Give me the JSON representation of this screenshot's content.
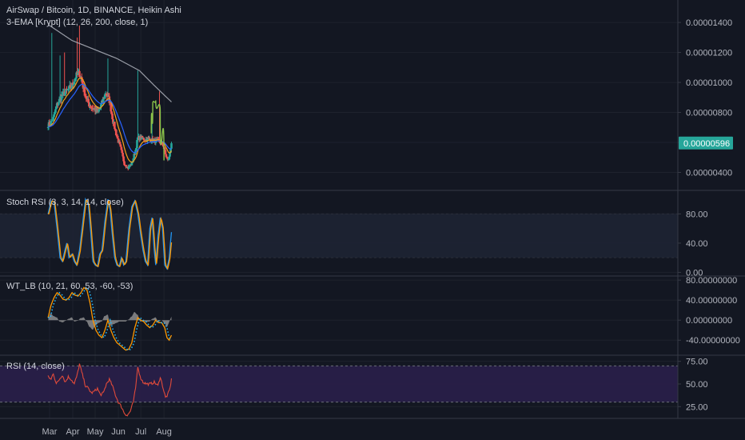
{
  "header": {
    "symbol_line": "AirSwap / Bitcoin, 1D, BINANCE, Heikin Ashi",
    "ema_legend": "3-EMA [Krypt] (12, 26, 200, close, 1)"
  },
  "panes": {
    "stoch_legend": "Stoch RSI (3, 3, 14, 14, close)",
    "wt_legend": "WT_LB (10, 21, 60, 53, -60, -53)",
    "rsi_legend": "RSI (14, close)"
  },
  "colors": {
    "background": "#131722",
    "grid": "#1e222d",
    "separator": "#363a45",
    "up_candle": "#26a69a",
    "down_candle": "#ef5350",
    "ema_fast": "#f7a21b",
    "ema_mid": "#2962ff",
    "ema_slow": "#b2b5be",
    "drawing": "#8bc34a",
    "stoch_k": "#2196f3",
    "stoch_d": "#ff9800",
    "wt1": "#ff9800",
    "wt2": "#29b6f6",
    "wt_hist": "#9e9e9e",
    "rsi_line": "#e04a3a",
    "rsi_band": "#2a1f4a",
    "price_tag": "#26a69a"
  },
  "chart_data": [
    {
      "type": "candlestick",
      "pane": "price",
      "title": "AirSwap / Bitcoin, 1D, BINANCE, Heikin Ashi",
      "y_ticks": [
        4e-06,
        6e-06,
        8e-06,
        1e-05,
        1.2e-05,
        1.4e-05
      ],
      "y_tick_labels": [
        "0.00000400",
        "0.00000600",
        "0.00000800",
        "0.00001000",
        "0.00001200",
        "0.00001400"
      ],
      "ylim": [
        2.8e-06,
        1.55e-05
      ],
      "last_price": 5.96e-06,
      "last_price_label": "0.00000596",
      "anchors_day_price": [
        [
          -60,
          7.2e-06
        ],
        [
          -55,
          7.6e-06
        ],
        [
          -50,
          8.5e-06
        ],
        [
          -45,
          9e-06
        ],
        [
          -40,
          9.3e-06
        ],
        [
          -35,
          9.5e-06
        ],
        [
          -30,
          9.8e-06
        ],
        [
          -25,
          1.04e-05
        ],
        [
          -20,
          1.06e-05
        ],
        [
          -17,
          1.02e-05
        ],
        [
          -14,
          9.5e-06
        ],
        [
          -10,
          8.8e-06
        ],
        [
          -5,
          8.4e-06
        ],
        [
          0,
          8.2e-06
        ],
        [
          5,
          8e-06
        ],
        [
          10,
          8.6e-06
        ],
        [
          15,
          9.3e-06
        ],
        [
          20,
          8.8e-06
        ],
        [
          25,
          7.4e-06
        ],
        [
          30,
          6.4e-06
        ],
        [
          35,
          5.6e-06
        ],
        [
          40,
          4.6e-06
        ],
        [
          45,
          4.3e-06
        ],
        [
          50,
          4.6e-06
        ],
        [
          55,
          5.5e-06
        ],
        [
          58,
          6.3e-06
        ],
        [
          62,
          6.3e-06
        ],
        [
          68,
          6.2e-06
        ],
        [
          75,
          6.2e-06
        ],
        [
          80,
          6.1e-06
        ],
        [
          85,
          6.1e-06
        ],
        [
          88,
          6e-06
        ],
        [
          92,
          5.8e-06
        ],
        [
          95,
          5.2e-06
        ],
        [
          98,
          4.8e-06
        ],
        [
          100,
          5e-06
        ],
        [
          103,
          6e-06
        ]
      ],
      "spikes_day_price": [
        [
          -57,
          1.33e-05
        ],
        [
          -46,
          1.18e-05
        ],
        [
          -40,
          1.2e-05
        ],
        [
          -23,
          1.3e-05
        ],
        [
          -20,
          1.38e-05
        ],
        [
          18,
          1.16e-05
        ],
        [
          58,
          1.08e-05
        ],
        [
          77,
          7.3e-06
        ],
        [
          87,
          9.4e-06
        ]
      ],
      "ema_200_anchors_day_price": [
        [
          -60,
          1.38e-05
        ],
        [
          -30,
          1.28e-05
        ],
        [
          0,
          1.22e-05
        ],
        [
          30,
          1.16e-05
        ],
        [
          60,
          1.08e-05
        ],
        [
          80,
          9.8e-06
        ],
        [
          103,
          8.7e-06
        ]
      ]
    },
    {
      "type": "line",
      "pane": "stoch_rsi",
      "title": "Stoch RSI (3, 3, 14, 14, close)",
      "y_ticks": [
        0,
        40,
        80
      ],
      "y_tick_labels": [
        "0.00",
        "40.00",
        "80.00"
      ],
      "band": [
        20,
        80
      ],
      "ylim": [
        -5,
        110
      ],
      "anchors_day_value": [
        [
          -62,
          80
        ],
        [
          -58,
          98
        ],
        [
          -54,
          96
        ],
        [
          -50,
          60
        ],
        [
          -46,
          20
        ],
        [
          -43,
          15
        ],
        [
          -40,
          28
        ],
        [
          -37,
          40
        ],
        [
          -34,
          20
        ],
        [
          -30,
          25
        ],
        [
          -27,
          15
        ],
        [
          -24,
          10
        ],
        [
          -20,
          30
        ],
        [
          -16,
          65
        ],
        [
          -12,
          100
        ],
        [
          -8,
          92
        ],
        [
          -5,
          55
        ],
        [
          -2,
          15
        ],
        [
          1,
          10
        ],
        [
          4,
          8
        ],
        [
          7,
          25
        ],
        [
          10,
          30
        ],
        [
          14,
          70
        ],
        [
          18,
          100
        ],
        [
          21,
          85
        ],
        [
          24,
          50
        ],
        [
          27,
          20
        ],
        [
          30,
          10
        ],
        [
          33,
          8
        ],
        [
          36,
          20
        ],
        [
          39,
          10
        ],
        [
          42,
          15
        ],
        [
          46,
          60
        ],
        [
          50,
          90
        ],
        [
          54,
          98
        ],
        [
          58,
          80
        ],
        [
          62,
          50
        ],
        [
          65,
          30
        ],
        [
          68,
          15
        ],
        [
          71,
          10
        ],
        [
          74,
          60
        ],
        [
          77,
          75
        ],
        [
          80,
          30
        ],
        [
          82,
          10
        ],
        [
          85,
          50
        ],
        [
          88,
          75
        ],
        [
          91,
          60
        ],
        [
          94,
          10
        ],
        [
          97,
          5
        ],
        [
          100,
          20
        ],
        [
          103,
          55
        ]
      ]
    },
    {
      "type": "line",
      "pane": "wt_lb",
      "title": "WT_LB (10, 21, 60, 53, -60, -53)",
      "y_ticks": [
        -40,
        0,
        40,
        80
      ],
      "y_tick_labels": [
        "-40.00000000",
        "0.00000000",
        "40.00000000",
        "80.00000000"
      ],
      "ylim": [
        -70,
        85
      ],
      "anchors_day_value": [
        [
          -62,
          5
        ],
        [
          -58,
          30
        ],
        [
          -54,
          45
        ],
        [
          -50,
          55
        ],
        [
          -46,
          50
        ],
        [
          -42,
          42
        ],
        [
          -38,
          40
        ],
        [
          -34,
          45
        ],
        [
          -30,
          55
        ],
        [
          -26,
          50
        ],
        [
          -22,
          48
        ],
        [
          -18,
          55
        ],
        [
          -14,
          65
        ],
        [
          -10,
          60
        ],
        [
          -6,
          35
        ],
        [
          -2,
          0
        ],
        [
          2,
          -20
        ],
        [
          6,
          -30
        ],
        [
          10,
          -35
        ],
        [
          14,
          -20
        ],
        [
          18,
          0
        ],
        [
          22,
          -20
        ],
        [
          26,
          -35
        ],
        [
          30,
          -45
        ],
        [
          34,
          -50
        ],
        [
          38,
          -55
        ],
        [
          42,
          -60
        ],
        [
          46,
          -58
        ],
        [
          50,
          -45
        ],
        [
          54,
          -15
        ],
        [
          58,
          5
        ],
        [
          62,
          0
        ],
        [
          66,
          -3
        ],
        [
          70,
          -10
        ],
        [
          74,
          -15
        ],
        [
          78,
          -10
        ],
        [
          82,
          0
        ],
        [
          86,
          -5
        ],
        [
          90,
          -5
        ],
        [
          94,
          -15
        ],
        [
          97,
          -35
        ],
        [
          100,
          -40
        ],
        [
          103,
          -30
        ]
      ]
    },
    {
      "type": "line",
      "pane": "rsi",
      "title": "RSI (14, close)",
      "y_ticks": [
        25,
        50,
        75
      ],
      "y_tick_labels": [
        "25.00",
        "50.00",
        "75.00"
      ],
      "band": [
        30,
        70
      ],
      "ylim": [
        12,
        80
      ],
      "anchors_day_value": [
        [
          -62,
          58
        ],
        [
          -58,
          55
        ],
        [
          -55,
          62
        ],
        [
          -51,
          50
        ],
        [
          -47,
          55
        ],
        [
          -43,
          60
        ],
        [
          -39,
          52
        ],
        [
          -35,
          58
        ],
        [
          -31,
          55
        ],
        [
          -27,
          50
        ],
        [
          -23,
          60
        ],
        [
          -20,
          72
        ],
        [
          -16,
          60
        ],
        [
          -12,
          48
        ],
        [
          -8,
          45
        ],
        [
          -4,
          40
        ],
        [
          0,
          42
        ],
        [
          4,
          45
        ],
        [
          8,
          38
        ],
        [
          12,
          40
        ],
        [
          16,
          50
        ],
        [
          20,
          55
        ],
        [
          24,
          48
        ],
        [
          28,
          38
        ],
        [
          32,
          30
        ],
        [
          36,
          25
        ],
        [
          40,
          18
        ],
        [
          44,
          15
        ],
        [
          48,
          20
        ],
        [
          52,
          30
        ],
        [
          55,
          45
        ],
        [
          58,
          70
        ],
        [
          61,
          58
        ],
        [
          65,
          52
        ],
        [
          70,
          50
        ],
        [
          75,
          50
        ],
        [
          80,
          52
        ],
        [
          85,
          48
        ],
        [
          88,
          58
        ],
        [
          92,
          45
        ],
        [
          95,
          35
        ],
        [
          98,
          38
        ],
        [
          101,
          45
        ],
        [
          103,
          55
        ]
      ]
    }
  ],
  "x_axis": {
    "ticks": [
      {
        "label": "Mar",
        "day": -60
      },
      {
        "label": "Apr",
        "day": -29
      },
      {
        "label": "May",
        "day": 1
      },
      {
        "label": "Jun",
        "day": 32
      },
      {
        "label": "Jul",
        "day": 62
      },
      {
        "label": "Aug",
        "day": 93
      }
    ]
  },
  "drawing": {
    "type": "curve",
    "points_day_price": [
      [
        76,
        6.6e-06
      ],
      [
        78,
        8.6e-06
      ],
      [
        82,
        8.8e-06
      ],
      [
        88,
        8e-06
      ],
      [
        93,
        4.8e-06
      ]
    ]
  }
}
